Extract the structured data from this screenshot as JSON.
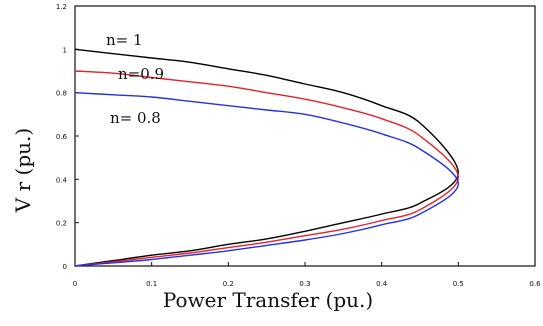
{
  "chart_data": {
    "type": "line",
    "xlabel": "Power Transfer (pu.)",
    "ylabel": "V r (pu.)",
    "xlim": [
      0,
      0.6
    ],
    "ylim": [
      0,
      1.2
    ],
    "x_ticks": [
      "0",
      "0.1",
      "0.2",
      "0.3",
      "0.4",
      "0.5",
      "0.6"
    ],
    "y_ticks": [
      "0",
      "0.2",
      "0.4",
      "0.6",
      "0.8",
      "1",
      "1.2"
    ],
    "grid": false,
    "series": [
      {
        "name": "n= 1",
        "color": "#000000",
        "points": [
          [
            0,
            0
          ],
          [
            0.05,
            0.025
          ],
          [
            0.1,
            0.05
          ],
          [
            0.15,
            0.07
          ],
          [
            0.2,
            0.1
          ],
          [
            0.25,
            0.125
          ],
          [
            0.3,
            0.16
          ],
          [
            0.35,
            0.2
          ],
          [
            0.4,
            0.24
          ],
          [
            0.45,
            0.29
          ],
          [
            0.5,
            0.43
          ],
          [
            0.45,
            0.66
          ],
          [
            0.4,
            0.74
          ],
          [
            0.35,
            0.8
          ],
          [
            0.3,
            0.84
          ],
          [
            0.25,
            0.88
          ],
          [
            0.2,
            0.91
          ],
          [
            0.15,
            0.94
          ],
          [
            0.1,
            0.96
          ],
          [
            0.05,
            0.98
          ],
          [
            0,
            1.0
          ]
        ]
      },
      {
        "name": "n=0.9",
        "color": "#e8202a",
        "points": [
          [
            0,
            0
          ],
          [
            0.05,
            0.02
          ],
          [
            0.1,
            0.04
          ],
          [
            0.15,
            0.06
          ],
          [
            0.2,
            0.085
          ],
          [
            0.25,
            0.11
          ],
          [
            0.3,
            0.14
          ],
          [
            0.35,
            0.17
          ],
          [
            0.4,
            0.21
          ],
          [
            0.45,
            0.26
          ],
          [
            0.5,
            0.41
          ],
          [
            0.45,
            0.6
          ],
          [
            0.4,
            0.68
          ],
          [
            0.35,
            0.73
          ],
          [
            0.3,
            0.77
          ],
          [
            0.25,
            0.8
          ],
          [
            0.2,
            0.83
          ],
          [
            0.15,
            0.85
          ],
          [
            0.1,
            0.87
          ],
          [
            0.05,
            0.89
          ],
          [
            0,
            0.9
          ]
        ]
      },
      {
        "name": "n= 0.8",
        "color": "#2233e0",
        "points": [
          [
            0,
            0
          ],
          [
            0.05,
            0.015
          ],
          [
            0.1,
            0.03
          ],
          [
            0.15,
            0.05
          ],
          [
            0.2,
            0.07
          ],
          [
            0.25,
            0.095
          ],
          [
            0.3,
            0.12
          ],
          [
            0.35,
            0.15
          ],
          [
            0.4,
            0.19
          ],
          [
            0.45,
            0.24
          ],
          [
            0.5,
            0.38
          ],
          [
            0.45,
            0.54
          ],
          [
            0.4,
            0.61
          ],
          [
            0.35,
            0.66
          ],
          [
            0.3,
            0.7
          ],
          [
            0.25,
            0.72
          ],
          [
            0.2,
            0.74
          ],
          [
            0.15,
            0.76
          ],
          [
            0.1,
            0.78
          ],
          [
            0.05,
            0.79
          ],
          [
            0,
            0.8
          ]
        ]
      }
    ]
  }
}
